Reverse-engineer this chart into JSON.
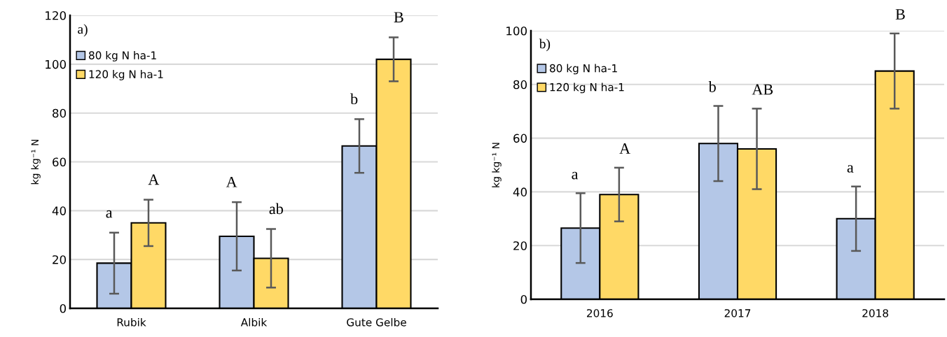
{
  "chart_data": [
    {
      "type": "bar",
      "ylabel": "kg kg⁻¹ N",
      "categories": [
        "Rubik",
        "Albik",
        "Gute Gelbe"
      ],
      "ylim": [
        0,
        120
      ],
      "yticks": [
        0,
        20,
        40,
        60,
        80,
        100,
        120
      ],
      "grid": "y",
      "legend": "top left",
      "series": [
        {
          "name": "80 kg N ha-1",
          "color": "#b4c7e7",
          "values": [
            18.5,
            29.5,
            66.5
          ],
          "errors": [
            12.5,
            14,
            11
          ]
        },
        {
          "name": "120 kg N ha-1",
          "color": "#ffd966",
          "values": [
            35,
            20.5,
            102
          ],
          "errors": [
            9.5,
            12,
            9
          ]
        }
      ],
      "annotations": [
        "a)",
        "a",
        "A",
        "A",
        "ab",
        "b",
        "B"
      ]
    },
    {
      "type": "bar",
      "ylabel": "kg kg⁻¹ N",
      "categories": [
        "2016",
        "2017",
        "2018"
      ],
      "ylim": [
        0,
        100
      ],
      "yticks": [
        0,
        20,
        40,
        60,
        80,
        100
      ],
      "grid": "y",
      "legend": "top left",
      "series": [
        {
          "name": "80 kg N ha-1",
          "color": "#b4c7e7",
          "values": [
            26.5,
            58,
            30
          ],
          "errors": [
            13,
            14,
            12
          ]
        },
        {
          "name": "120 kg N ha-1",
          "color": "#ffd966",
          "values": [
            39,
            56,
            85
          ],
          "errors": [
            10,
            15,
            14
          ]
        }
      ],
      "annotations": [
        "b)",
        "a",
        "A",
        "b",
        "AB",
        "a",
        "B"
      ]
    }
  ]
}
